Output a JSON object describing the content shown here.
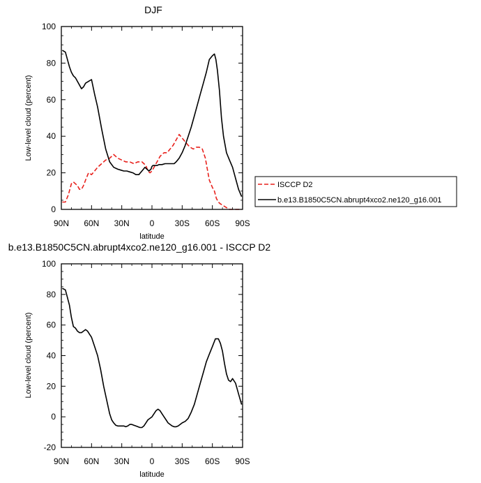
{
  "chart_data": [
    {
      "type": "line",
      "title": "DJF",
      "xlabel": "latitude",
      "ylabel": "Low-level cloud (percent)",
      "xlim": [
        90,
        -90
      ],
      "ylim": [
        0,
        100
      ],
      "x_ticks": [
        90,
        60,
        30,
        0,
        -30,
        -60,
        -90
      ],
      "x_tick_labels": [
        "90N",
        "60N",
        "30N",
        "0",
        "30S",
        "60S",
        "90S"
      ],
      "y_ticks": [
        0,
        20,
        40,
        60,
        80,
        100
      ],
      "y_tick_labels": [
        "0",
        "20",
        "40",
        "60",
        "80",
        "100"
      ],
      "legend_position": "right",
      "series": [
        {
          "name": "ISCCP D2",
          "color": "#e8211c",
          "dash": "dashed",
          "x": [
            89,
            86,
            83,
            80,
            78,
            76,
            74,
            72,
            70,
            68,
            66,
            63,
            60,
            57,
            54,
            50,
            46,
            42,
            38,
            34,
            30,
            26,
            22,
            18,
            14,
            10,
            6,
            4,
            2,
            0,
            -2,
            -4,
            -6,
            -8,
            -10,
            -12,
            -15,
            -18,
            -21,
            -24,
            -27,
            -30,
            -33,
            -36,
            -38,
            -41,
            -44,
            -47,
            -50,
            -53,
            -55,
            -57,
            -60,
            -62,
            -64,
            -66,
            -68,
            -71,
            -74,
            -77,
            -80,
            -83,
            -86,
            -89
          ],
          "y": [
            4,
            4,
            8,
            14,
            15,
            14,
            13,
            11,
            11,
            13,
            16,
            20,
            19,
            21,
            23,
            25,
            27,
            28,
            30,
            28,
            27,
            26,
            26,
            25,
            26,
            26,
            24,
            21,
            20,
            21,
            23,
            25,
            27,
            29,
            30,
            31,
            31,
            33,
            35,
            38,
            41,
            39,
            37,
            35,
            34,
            33,
            34,
            34,
            33,
            28,
            22,
            16,
            12,
            10,
            6,
            4,
            3,
            2,
            1,
            0,
            0,
            0,
            0,
            0
          ]
        },
        {
          "name": "b.e13.B1850C5CN.abrupt4xco2.ne120_g16.001",
          "color": "#000000",
          "dash": "solid",
          "x": [
            89,
            86,
            84,
            82,
            80,
            78,
            76,
            74,
            72,
            70,
            68,
            66,
            63,
            60,
            57,
            54,
            50,
            46,
            42,
            38,
            34,
            31,
            28,
            25,
            22,
            19,
            16,
            13,
            10,
            7,
            5,
            3,
            1,
            0,
            -1,
            -3,
            -5,
            -7,
            -10,
            -13,
            -16,
            -19,
            -22,
            -24,
            -27,
            -30,
            -33,
            -36,
            -39,
            -42,
            -45,
            -48,
            -51,
            -54,
            -57,
            -60,
            -62,
            -63.5,
            -65,
            -67,
            -69,
            -71,
            -74,
            -77,
            -80,
            -83,
            -86,
            -89
          ],
          "y": [
            87,
            86,
            82,
            78,
            75,
            73,
            72,
            70,
            68,
            66,
            67,
            69,
            70,
            71,
            63,
            56,
            44,
            33,
            26,
            23,
            22,
            21.5,
            21,
            21,
            20.5,
            20,
            19,
            19,
            21,
            23,
            22,
            21,
            22,
            23.5,
            24,
            24,
            24,
            24.5,
            24.5,
            25,
            25,
            25,
            25,
            26,
            28,
            31,
            35,
            40,
            45,
            51,
            57,
            63,
            69,
            75,
            82,
            84,
            85,
            82,
            76,
            65,
            50,
            40,
            31,
            27,
            23,
            17,
            11,
            7
          ]
        }
      ]
    },
    {
      "type": "line",
      "title": "b.e13.B1850C5CN.abrupt4xco2.ne120_g16.001 - ISCCP D2",
      "xlabel": "latitude",
      "ylabel": "Low-level cloud (percent)",
      "xlim": [
        90,
        -90
      ],
      "ylim": [
        -20,
        100
      ],
      "x_ticks": [
        90,
        60,
        30,
        0,
        -30,
        -60,
        -90
      ],
      "x_tick_labels": [
        "90N",
        "60N",
        "30N",
        "0",
        "30S",
        "60S",
        "90S"
      ],
      "y_ticks": [
        -20,
        0,
        20,
        40,
        60,
        80,
        100
      ],
      "y_tick_labels": [
        "-20",
        "0",
        "20",
        "40",
        "60",
        "80",
        "100"
      ],
      "series": [
        {
          "color": "#000000",
          "dash": "solid",
          "x": [
            89,
            86,
            84,
            82,
            80,
            78,
            76,
            74,
            72,
            70,
            68,
            66,
            64,
            62,
            60,
            57,
            54,
            51,
            48,
            45,
            42,
            40,
            38,
            36,
            34,
            32,
            30,
            28,
            26,
            24,
            22,
            20,
            18,
            16,
            14,
            12,
            10,
            8,
            6,
            4,
            2,
            0,
            -2,
            -4,
            -6,
            -8,
            -10,
            -12,
            -14,
            -16,
            -18,
            -20,
            -22,
            -24,
            -26,
            -28,
            -30,
            -33,
            -36,
            -39,
            -42,
            -45,
            -48,
            -51,
            -54,
            -57,
            -60,
            -63,
            -66,
            -68,
            -70,
            -72,
            -74,
            -76,
            -78,
            -80,
            -83,
            -86,
            -89
          ],
          "y": [
            84,
            83,
            78,
            73,
            65,
            59,
            58,
            56,
            55,
            55,
            56,
            57,
            56,
            54,
            52,
            46,
            40,
            31,
            20,
            11,
            2,
            -2,
            -4,
            -5.5,
            -6,
            -6,
            -6,
            -6,
            -6.5,
            -6,
            -5,
            -5,
            -5.5,
            -6,
            -6.5,
            -7,
            -7,
            -6,
            -4,
            -2,
            -1,
            0,
            2,
            4,
            5,
            4,
            2,
            0,
            -2,
            -4,
            -5,
            -6,
            -6.5,
            -6.5,
            -6,
            -5,
            -4,
            -3,
            -1,
            3,
            8,
            15,
            22,
            29,
            36,
            41,
            46,
            51,
            51,
            48,
            43,
            35,
            28,
            24,
            23,
            25,
            22,
            15,
            8
          ]
        }
      ]
    }
  ]
}
